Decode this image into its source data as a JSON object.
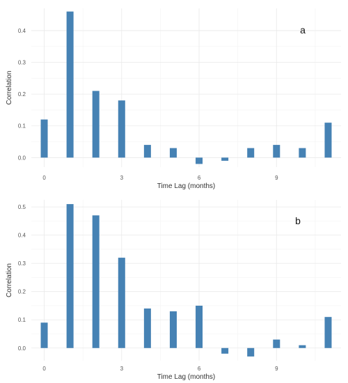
{
  "chart_data": [
    {
      "type": "bar",
      "panel_label": "a",
      "x": [
        0,
        1,
        2,
        3,
        4,
        5,
        6,
        7,
        8,
        9,
        10,
        11
      ],
      "values": [
        0.12,
        0.46,
        0.21,
        0.18,
        0.04,
        0.03,
        -0.02,
        -0.01,
        0.03,
        0.04,
        0.03,
        0.11
      ],
      "xlabel": "Time Lag (months)",
      "ylabel": "Correlation",
      "xticks": [
        0,
        3,
        6,
        9
      ],
      "yticks": [
        0.0,
        0.1,
        0.2,
        0.3,
        0.4
      ],
      "ytick_labels": [
        "0.0",
        "0.1",
        "0.2",
        "0.3",
        "0.4"
      ],
      "ylim": [
        -0.03,
        0.47
      ],
      "xlim": [
        -0.5,
        11.5
      ],
      "grid": true,
      "color": "#4682b4"
    },
    {
      "type": "bar",
      "panel_label": "b",
      "x": [
        0,
        1,
        2,
        3,
        4,
        5,
        6,
        7,
        8,
        9,
        10,
        11
      ],
      "values": [
        0.09,
        0.51,
        0.47,
        0.32,
        0.14,
        0.13,
        0.15,
        -0.02,
        -0.03,
        0.03,
        0.01,
        0.11
      ],
      "xlabel": "Time Lag (months)",
      "ylabel": "Correlation",
      "xticks": [
        0,
        3,
        6,
        9
      ],
      "yticks": [
        0.0,
        0.1,
        0.2,
        0.3,
        0.4,
        0.5
      ],
      "ytick_labels": [
        "0.0",
        "0.1",
        "0.2",
        "0.3",
        "0.4",
        "0.5"
      ],
      "ylim": [
        -0.045,
        0.525
      ],
      "xlim": [
        -0.5,
        11.5
      ],
      "grid": true,
      "color": "#4682b4"
    }
  ]
}
